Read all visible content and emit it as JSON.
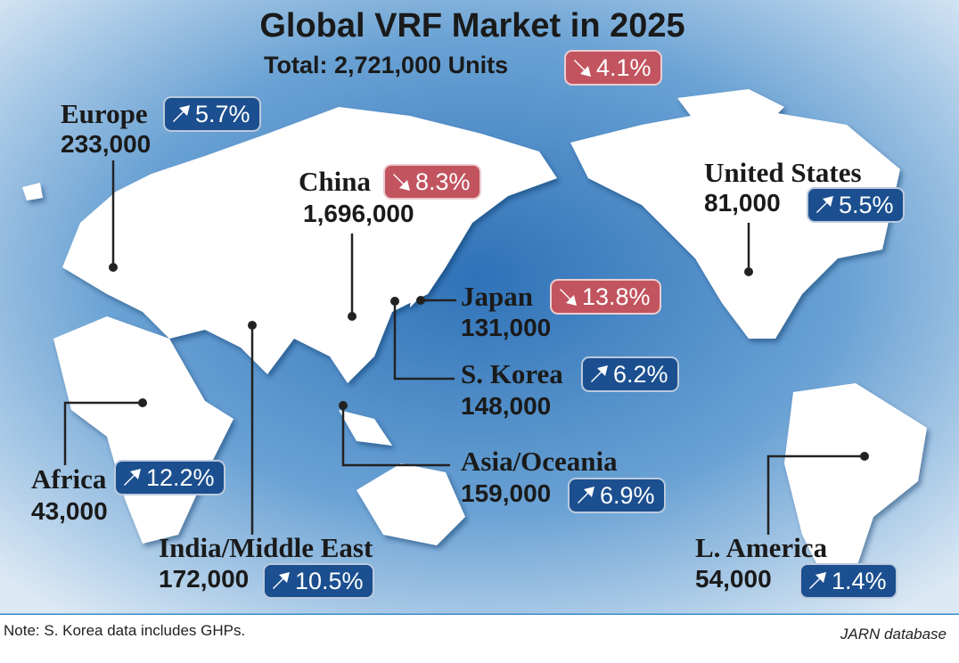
{
  "title": "Global VRF Market in 2025",
  "total": {
    "label": "Total: 2,721,000 Units",
    "change": "4.1%",
    "arrow": "down",
    "color": "#c2545f"
  },
  "regions": [
    {
      "name": "Europe",
      "value": "233,000",
      "change": "5.7%",
      "arrow": "up",
      "color": "#1b4f8f"
    },
    {
      "name": "China",
      "value": "1,696,000",
      "change": "8.3%",
      "arrow": "down",
      "color": "#c2545f"
    },
    {
      "name": "United States",
      "value": "81,000",
      "change": "5.5%",
      "arrow": "up",
      "color": "#1b4f8f"
    },
    {
      "name": "Japan",
      "value": "131,000",
      "change": "13.8%",
      "arrow": "down",
      "color": "#c2545f"
    },
    {
      "name": "S. Korea",
      "value": "148,000",
      "change": "6.2%",
      "arrow": "up",
      "color": "#1b4f8f"
    },
    {
      "name": "Asia/Oceania",
      "value": "159,000",
      "change": "6.9%",
      "arrow": "up",
      "color": "#1b4f8f"
    },
    {
      "name": "Africa",
      "value": "43,000",
      "change": "12.2%",
      "arrow": "up",
      "color": "#1b4f8f"
    },
    {
      "name": "India/Middle East",
      "value": "172,000",
      "change": "10.5%",
      "arrow": "up",
      "color": "#1b4f8f"
    },
    {
      "name": "L. America",
      "value": "54,000",
      "change": "1.4%",
      "arrow": "up",
      "color": "#1b4f8f"
    }
  ],
  "note": "Note: S. Korea data includes GHPs.",
  "source": "JARN database"
}
